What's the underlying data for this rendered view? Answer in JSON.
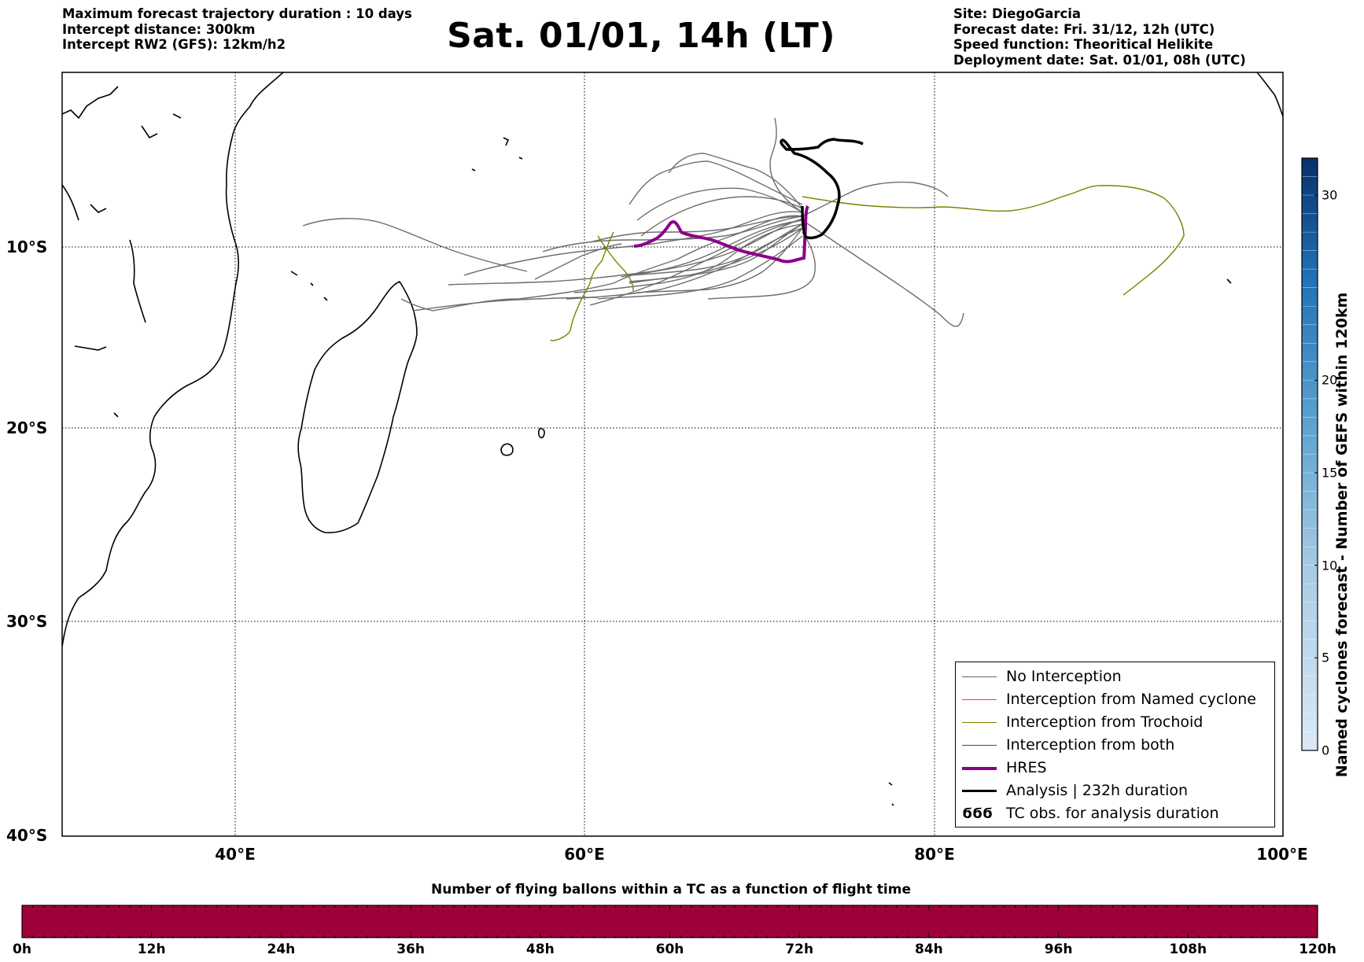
{
  "header_left": [
    "Maximum forecast trajectory duration : 10 days",
    "Intercept distance: 300km",
    "Intercept RW2 (GFS):  12km/h2"
  ],
  "title": "Sat. 01/01, 14h (LT)",
  "header_right": [
    "Site: DiegoGarcia",
    "Forecast date: Fri. 31/12, 12h (UTC)",
    "Speed function: Theoritical Helikite",
    "Deployment date: Sat. 01/01, 08h (UTC)"
  ],
  "map": {
    "lat_labels": [
      "10°S",
      "20°S",
      "30°S",
      "40°S"
    ],
    "lon_labels": [
      "40°E",
      "60°E",
      "80°E",
      "100°E"
    ],
    "grid": true
  },
  "legend": {
    "items": [
      {
        "label": "No Interception",
        "color": "#666666"
      },
      {
        "label": "Interception from Named cyclone",
        "color": "#ff4500"
      },
      {
        "label": "Interception from Trochoid",
        "color": "#808000"
      },
      {
        "label": "Interception from both",
        "color": "#008000"
      },
      {
        "label": "HRES",
        "color": "#8b008b"
      },
      {
        "label": "Analysis | 232h duration",
        "color": "#000000"
      },
      {
        "label": "TC obs. for analysis duration",
        "symbol": "ϭϭϭ"
      }
    ]
  },
  "colorbar_right": {
    "label": "Named cyclones forecast - Number of GEFS within 120km",
    "ticks": [
      "0",
      "5",
      "10",
      "15",
      "20",
      "30"
    ],
    "range": [
      0,
      32
    ]
  },
  "colorbar_bottom": {
    "title": "Number of flying ballons within a TC as a function of flight time",
    "ticks": [
      "0h",
      "12h",
      "24h",
      "36h",
      "48h",
      "60h",
      "72h",
      "84h",
      "96h",
      "108h",
      "120h"
    ],
    "color": "#9e003a"
  }
}
